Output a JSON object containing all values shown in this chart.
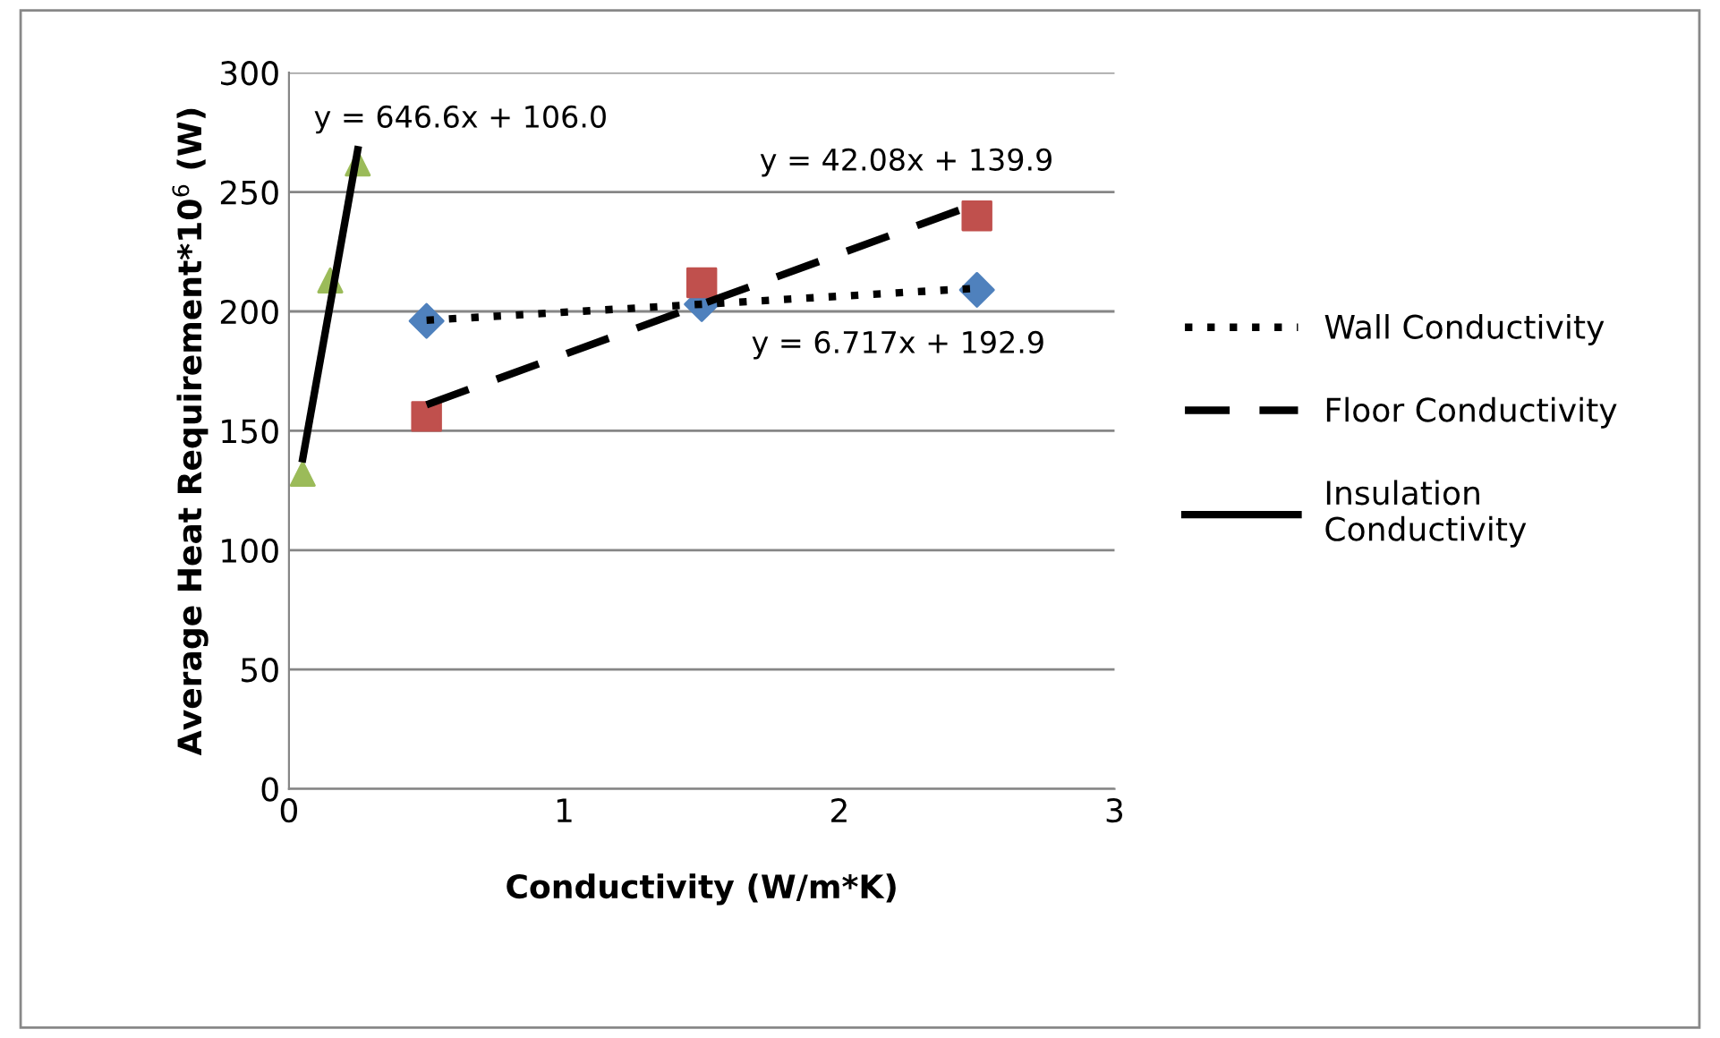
{
  "chart_data": {
    "type": "scatter",
    "xlabel": "Conductivity (W/m*K)",
    "ylabel": "Average Heat Requirement*10$^{6}$ (W)",
    "xlim": [
      0,
      3
    ],
    "xticks": [
      0,
      1,
      2,
      3
    ],
    "ylim": [
      0,
      300
    ],
    "yticks": [
      0,
      50,
      100,
      150,
      200,
      250,
      300
    ],
    "grid": "y",
    "legend": "right",
    "series": [
      {
        "color": "#4f81bd",
        "marker": "diamond",
        "x": [
          0.5,
          1.5,
          2.5
        ],
        "values": [
          196,
          203,
          209
        ]
      },
      {
        "color": "#c0504d",
        "marker": "square",
        "x": [
          0.5,
          1.5,
          2.5
        ],
        "values": [
          156,
          212,
          240
        ]
      },
      {
        "color": "#9bbb59",
        "marker": "triangle",
        "x": [
          0.05,
          0.15,
          0.25
        ],
        "values": [
          132,
          213,
          262
        ]
      },
      {
        "type": "line",
        "name": "Wall Conductivity",
        "color": "#000000",
        "marker": "none",
        "line_style": "dotted",
        "x": [
          0.5,
          2.5
        ],
        "values": [
          196.3,
          209.7
        ]
      },
      {
        "type": "line",
        "name": "Floor Conductivity",
        "color": "#000000",
        "marker": "none",
        "line_style": "dashed",
        "x": [
          0.5,
          2.5
        ],
        "values": [
          160.9,
          245.1
        ]
      },
      {
        "type": "line",
        "name": "Insulation\nConductivity",
        "color": "#000000",
        "marker": "none",
        "line_style": "solid",
        "x": [
          0.05,
          0.25
        ],
        "values": [
          138.3,
          267.7
        ]
      }
    ],
    "annotations": [
      "y = 646.6x + 106.0",
      "y = 42.08x + 139.9",
      "y = 6.717x + 192.9"
    ]
  }
}
